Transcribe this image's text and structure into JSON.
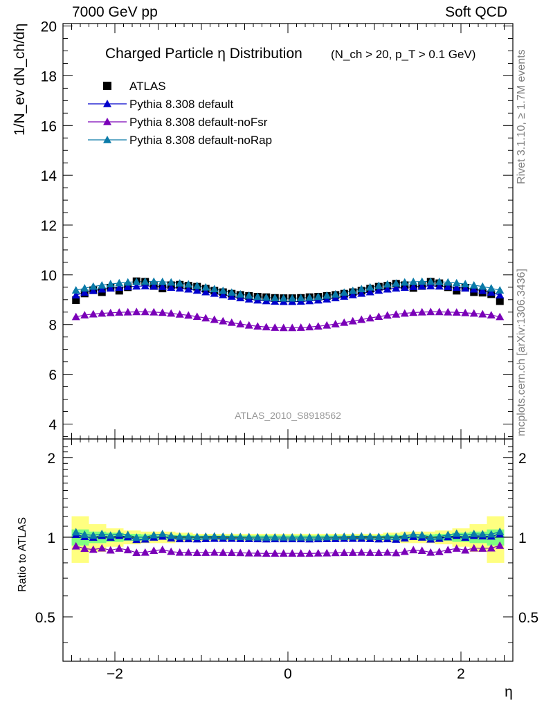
{
  "header": {
    "left": "7000 GeV pp",
    "right": "Soft QCD"
  },
  "side_texts": {
    "rivet": "Rivet 3.1.10, ≥ 1.7M events",
    "mcplots": "mcplots.cern.ch [arXiv:1306.3436]"
  },
  "colors": {
    "atlas": "#000000",
    "default": "#0000cc",
    "noFsr": "#7a00b8",
    "noRap": "#0a7aa8",
    "band_outer": "#ffff80",
    "band_inner": "#80ff80"
  },
  "chart_data": [
    {
      "type": "scatter",
      "title": "Charged Particle η Distribution",
      "title_note": "(N_ch > 20, p_T > 0.1 GeV)",
      "ylabel": "1/N_ev dN_ch/dη",
      "xlabel": "",
      "analysis_label": "ATLAS_2010_S8918562",
      "xlim": [
        -2.6,
        2.6
      ],
      "ylim": [
        3.4,
        20.1
      ],
      "yticks": [
        "4",
        "6",
        "8",
        "10",
        "12",
        "14",
        "16",
        "18",
        "20"
      ],
      "legend": {
        "placement": "top-left",
        "entries": [
          "ATLAS",
          "Pythia 8.308 default",
          "Pythia 8.308 default-noFsr",
          "Pythia 8.308 default-noRap"
        ]
      },
      "x": [
        -2.45,
        -2.35,
        -2.25,
        -2.15,
        -2.05,
        -1.95,
        -1.85,
        -1.75,
        -1.65,
        -1.55,
        -1.45,
        -1.35,
        -1.25,
        -1.15,
        -1.05,
        -0.95,
        -0.85,
        -0.75,
        -0.65,
        -0.55,
        -0.45,
        -0.35,
        -0.25,
        -0.15,
        -0.05,
        0.05,
        0.15,
        0.25,
        0.35,
        0.45,
        0.55,
        0.65,
        0.75,
        0.85,
        0.95,
        1.05,
        1.15,
        1.25,
        1.35,
        1.45,
        1.55,
        1.65,
        1.75,
        1.85,
        1.95,
        2.05,
        2.15,
        2.25,
        2.35,
        2.45
      ],
      "series": [
        {
          "name": "ATLAS",
          "marker": "square",
          "values": [
            8.98,
            9.25,
            9.38,
            9.3,
            9.48,
            9.36,
            9.5,
            9.74,
            9.72,
            9.55,
            9.45,
            9.58,
            9.6,
            9.56,
            9.52,
            9.44,
            9.36,
            9.3,
            9.24,
            9.19,
            9.15,
            9.12,
            9.1,
            9.07,
            9.06,
            9.06,
            9.07,
            9.1,
            9.12,
            9.15,
            9.19,
            9.24,
            9.3,
            9.36,
            9.44,
            9.52,
            9.56,
            9.64,
            9.58,
            9.47,
            9.55,
            9.72,
            9.66,
            9.5,
            9.36,
            9.48,
            9.3,
            9.28,
            9.22,
            8.94
          ]
        },
        {
          "name": "Pythia 8.308 default",
          "marker": "triangle",
          "values": [
            9.18,
            9.29,
            9.36,
            9.42,
            9.46,
            9.49,
            9.52,
            9.54,
            9.55,
            9.54,
            9.52,
            9.49,
            9.46,
            9.42,
            9.37,
            9.31,
            9.25,
            9.19,
            9.13,
            9.07,
            9.02,
            8.98,
            8.95,
            8.93,
            8.92,
            8.92,
            8.93,
            8.95,
            8.98,
            9.02,
            9.07,
            9.13,
            9.19,
            9.25,
            9.31,
            9.37,
            9.42,
            9.46,
            9.49,
            9.52,
            9.54,
            9.55,
            9.54,
            9.52,
            9.49,
            9.46,
            9.42,
            9.36,
            9.29,
            9.18
          ]
        },
        {
          "name": "Pythia 8.308 default-noFsr",
          "marker": "triangle",
          "values": [
            8.31,
            8.38,
            8.42,
            8.45,
            8.47,
            8.49,
            8.5,
            8.51,
            8.51,
            8.5,
            8.48,
            8.45,
            8.41,
            8.37,
            8.32,
            8.26,
            8.2,
            8.14,
            8.08,
            8.02,
            7.97,
            7.93,
            7.9,
            7.88,
            7.87,
            7.87,
            7.88,
            7.9,
            7.93,
            7.97,
            8.02,
            8.08,
            8.14,
            8.2,
            8.26,
            8.32,
            8.37,
            8.41,
            8.45,
            8.48,
            8.5,
            8.51,
            8.51,
            8.5,
            8.49,
            8.47,
            8.45,
            8.42,
            8.38,
            8.31
          ]
        },
        {
          "name": "Pythia 8.308 default-noRap",
          "marker": "triangle",
          "values": [
            9.38,
            9.46,
            9.53,
            9.58,
            9.63,
            9.67,
            9.7,
            9.72,
            9.73,
            9.73,
            9.72,
            9.7,
            9.66,
            9.62,
            9.56,
            9.5,
            9.43,
            9.36,
            9.29,
            9.22,
            9.17,
            9.12,
            9.09,
            9.07,
            9.06,
            9.06,
            9.07,
            9.09,
            9.12,
            9.17,
            9.22,
            9.29,
            9.36,
            9.43,
            9.5,
            9.56,
            9.62,
            9.66,
            9.7,
            9.72,
            9.73,
            9.73,
            9.72,
            9.7,
            9.67,
            9.63,
            9.58,
            9.53,
            9.46,
            9.38
          ]
        }
      ]
    },
    {
      "type": "scatter",
      "title": "",
      "xlabel": "η",
      "ylabel": "Ratio to ATLAS",
      "xlim": [
        -2.6,
        2.6
      ],
      "ylim": [
        0.34,
        2.35
      ],
      "log_y": true,
      "xticks": [
        "−2",
        "0",
        "2"
      ],
      "yticks": [
        "0.5",
        "1",
        "2"
      ],
      "band_outer_halfwidth": [
        0.2,
        0.2,
        0.12,
        0.12,
        0.08,
        0.08,
        0.06,
        0.06,
        0.05,
        0.05,
        0.05,
        0.05,
        0.04,
        0.04,
        0.03,
        0.03,
        0.03,
        0.03,
        0.03,
        0.03,
        0.03,
        0.03,
        0.03,
        0.03,
        0.03,
        0.03,
        0.03,
        0.03,
        0.03,
        0.03,
        0.03,
        0.03,
        0.03,
        0.03,
        0.03,
        0.03,
        0.04,
        0.04,
        0.05,
        0.05,
        0.05,
        0.05,
        0.06,
        0.06,
        0.08,
        0.08,
        0.12,
        0.12,
        0.2,
        0.2
      ],
      "band_inner_halfwidth": [
        0.07,
        0.07,
        0.05,
        0.05,
        0.04,
        0.04,
        0.03,
        0.03,
        0.025,
        0.025,
        0.02,
        0.02,
        0.02,
        0.02,
        0.015,
        0.015,
        0.015,
        0.015,
        0.015,
        0.015,
        0.015,
        0.015,
        0.015,
        0.015,
        0.015,
        0.015,
        0.015,
        0.015,
        0.015,
        0.015,
        0.015,
        0.015,
        0.015,
        0.015,
        0.015,
        0.015,
        0.02,
        0.02,
        0.02,
        0.02,
        0.025,
        0.025,
        0.03,
        0.03,
        0.04,
        0.04,
        0.05,
        0.05,
        0.07,
        0.07
      ],
      "series": [
        {
          "name": "Pythia 8.308 default",
          "values": [
            1.022,
            1.004,
            0.998,
            1.013,
            0.998,
            1.014,
            1.002,
            0.979,
            0.982,
            0.999,
            1.007,
            0.991,
            0.985,
            0.985,
            0.984,
            0.986,
            0.988,
            0.988,
            0.988,
            0.987,
            0.986,
            0.985,
            0.984,
            0.985,
            0.985,
            0.985,
            0.985,
            0.984,
            0.985,
            0.986,
            0.987,
            0.988,
            0.988,
            0.988,
            0.986,
            0.984,
            0.985,
            0.981,
            0.991,
            1.005,
            0.999,
            0.982,
            0.988,
            1.002,
            1.014,
            0.998,
            1.013,
            1.009,
            1.008,
            1.027
          ]
        },
        {
          "name": "Pythia 8.308 default-noFsr",
          "values": [
            0.925,
            0.906,
            0.898,
            0.909,
            0.893,
            0.907,
            0.895,
            0.874,
            0.876,
            0.89,
            0.897,
            0.882,
            0.876,
            0.876,
            0.874,
            0.875,
            0.876,
            0.875,
            0.874,
            0.873,
            0.871,
            0.87,
            0.868,
            0.869,
            0.869,
            0.869,
            0.869,
            0.868,
            0.87,
            0.871,
            0.873,
            0.874,
            0.875,
            0.876,
            0.875,
            0.874,
            0.876,
            0.872,
            0.882,
            0.895,
            0.89,
            0.876,
            0.881,
            0.895,
            0.907,
            0.893,
            0.909,
            0.907,
            0.909,
            0.93
          ]
        },
        {
          "name": "Pythia 8.308 default-noRap",
          "values": [
            1.045,
            1.023,
            1.016,
            1.03,
            1.016,
            1.033,
            1.021,
            0.998,
            1.001,
            1.019,
            1.029,
            1.013,
            1.006,
            1.006,
            1.004,
            1.006,
            1.008,
            1.006,
            1.005,
            1.003,
            1.002,
            1.0,
            0.999,
            1.0,
            1.0,
            1.0,
            1.0,
            0.999,
            1.0,
            1.002,
            1.003,
            1.005,
            1.006,
            1.008,
            1.006,
            1.004,
            1.006,
            1.002,
            1.013,
            1.026,
            1.019,
            1.001,
            1.006,
            1.021,
            1.033,
            1.016,
            1.03,
            1.027,
            1.026,
            1.049
          ]
        }
      ]
    }
  ]
}
